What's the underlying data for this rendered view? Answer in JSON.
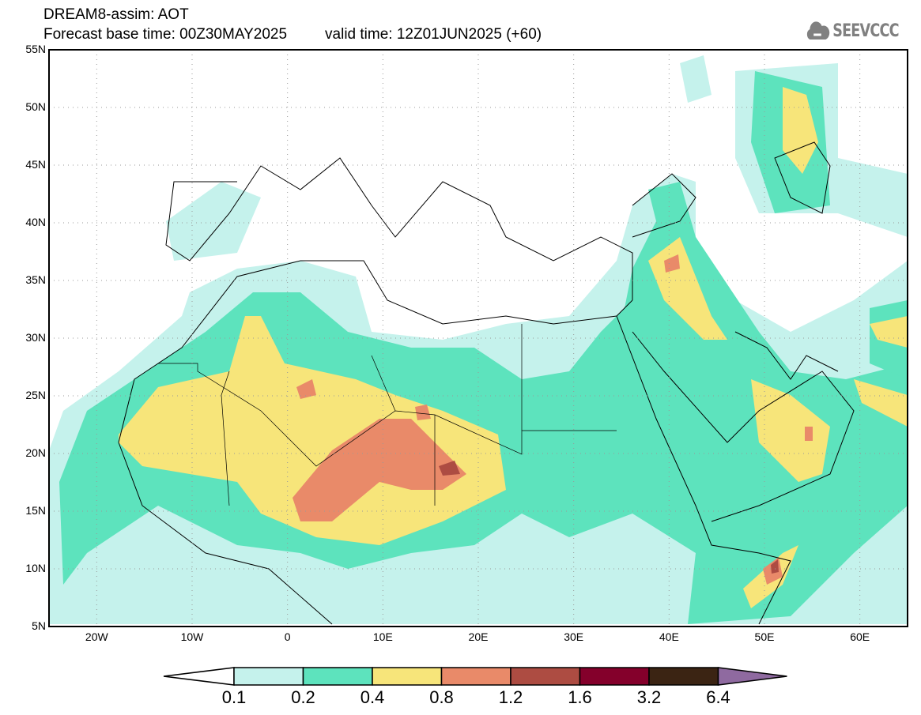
{
  "header": {
    "title": "DREAM8-assim: AOT",
    "base_time": "Forecast base time: 00Z30MAY2025",
    "valid_time": "valid time: 12Z01JUN2025 (+60)"
  },
  "logo": {
    "text": "SEEVCCC",
    "icon": "cloud-icon"
  },
  "axes": {
    "lon_labels": [
      "20W",
      "10W",
      "0",
      "10E",
      "20E",
      "30E",
      "40E",
      "50E",
      "60E"
    ],
    "lon_values": [
      -20,
      -10,
      0,
      10,
      20,
      30,
      40,
      50,
      60
    ],
    "lat_labels": [
      "5N",
      "10N",
      "15N",
      "20N",
      "25N",
      "30N",
      "35N",
      "40N",
      "45N",
      "50N",
      "55N"
    ],
    "lat_values": [
      5,
      10,
      15,
      20,
      25,
      30,
      35,
      40,
      45,
      50,
      55
    ],
    "lon_range": [
      -25,
      65
    ],
    "lat_range": [
      5,
      55
    ]
  },
  "colorbar": {
    "labels": [
      "0.1",
      "0.2",
      "0.4",
      "0.8",
      "1.2",
      "1.6",
      "3.2",
      "6.4"
    ],
    "colors": [
      "#c5f2ec",
      "#5de3bd",
      "#f7e57a",
      "#e98a69",
      "#ad4c42",
      "#84002b",
      "#3b2413"
    ],
    "under_color": "#ffffff",
    "over_color": "#8f6aa0"
  }
}
